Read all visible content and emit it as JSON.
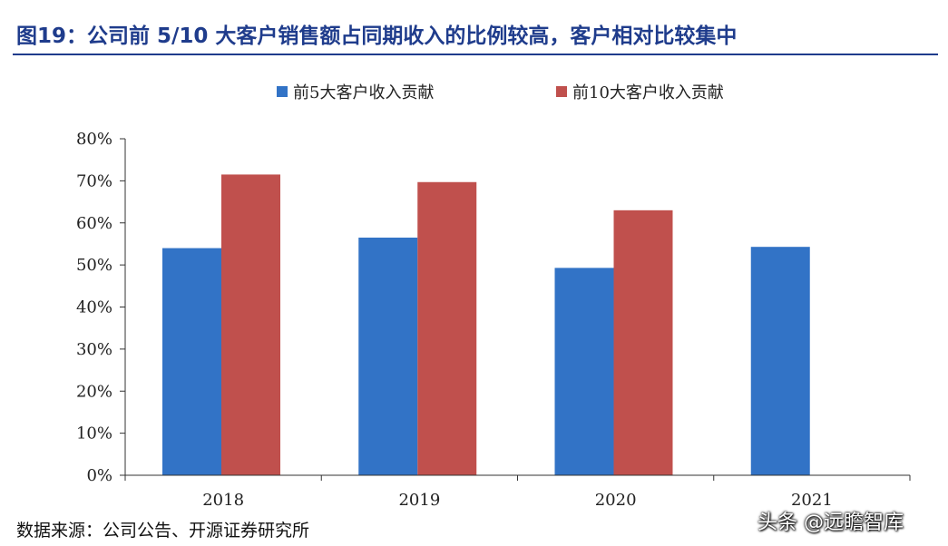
{
  "figure": {
    "title": "图19：公司前 5/10 大客户销售额占同期收入的比例较高，客户相对比较集中",
    "source": "数据来源：公司公告、开源证券研究所",
    "watermark": "头条 @远瞻智库"
  },
  "colors": {
    "title": "#1f3c8c",
    "series_top5": "#3273c6",
    "series_top10": "#c0504d",
    "axis": "#333333"
  },
  "chart_data": {
    "type": "bar",
    "title": "",
    "xlabel": "",
    "ylabel": "",
    "categories": [
      "2018",
      "2019",
      "2020",
      "2021"
    ],
    "series": [
      {
        "name": "前5大客户收入贡献",
        "values": [
          0.54,
          0.565,
          0.493,
          0.543
        ]
      },
      {
        "name": "前10大客户收入贡献",
        "values": [
          0.715,
          0.697,
          0.63,
          null
        ]
      }
    ],
    "ylim": [
      0,
      0.8
    ],
    "yticks": [
      0,
      0.1,
      0.2,
      0.3,
      0.4,
      0.5,
      0.6,
      0.7,
      0.8
    ],
    "ytick_labels": [
      "0%",
      "10%",
      "20%",
      "30%",
      "40%",
      "50%",
      "60%",
      "70%",
      "80%"
    ],
    "legend_position": "top",
    "grid": false
  }
}
